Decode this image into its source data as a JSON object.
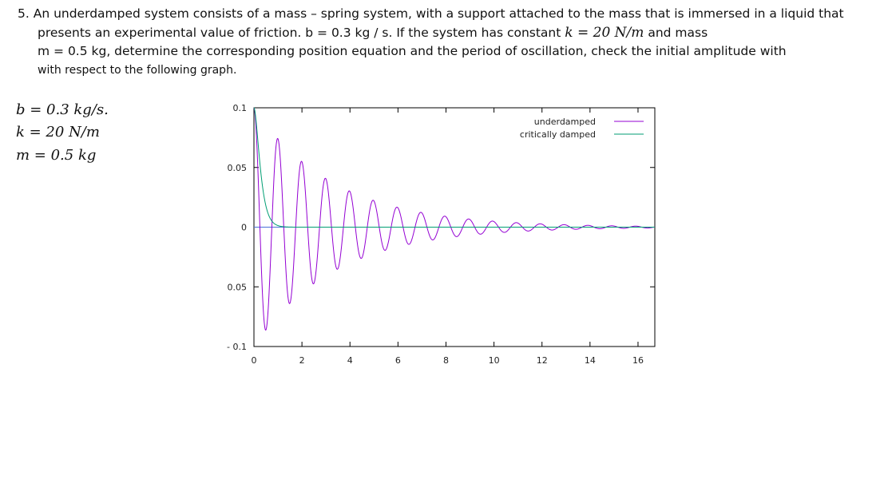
{
  "problem": {
    "line1": "5. An underdamped system consists of a mass – spring system, with a support attached to the mass that is immersed in a liquid that",
    "line2_pre": "presents an experimental value of friction. b = 0.3 kg / s. If the system has constant",
    "line2_math": "k = 20 N/m",
    "line2_post": "and mass",
    "line3": "m = 0.5 kg, determine the corresponding position equation and the period of oscillation, check the initial amplitude with",
    "line4": "with respect to the following graph."
  },
  "given": {
    "b": "b = 0.3 kg/s.",
    "k": "k = 20 N/m",
    "m": "m = 0.5 kg"
  },
  "chart_data": {
    "type": "line",
    "title": "",
    "xlabel": "",
    "ylabel": "",
    "xlim": [
      0,
      16.7
    ],
    "ylim": [
      -0.1,
      0.1
    ],
    "x_ticks": [
      "0",
      "2",
      "4",
      "6",
      "8",
      "10",
      "12",
      "14",
      "16"
    ],
    "y_ticks": [
      "0.1",
      "0.05",
      "0",
      "0.05",
      "- 0.1"
    ],
    "legend_position": "top-right",
    "grid": false,
    "series": [
      {
        "name": "underdamped",
        "color": "#9400d3",
        "model": {
          "amplitude": 0.1,
          "damping_rate": 0.3,
          "angular_frequency": 6.32
        },
        "x": [
          0,
          1,
          2,
          3,
          4,
          5,
          6,
          7,
          8,
          9,
          10,
          11,
          12,
          13,
          14,
          15,
          16
        ],
        "y_envelope": [
          0.1,
          0.074,
          0.055,
          0.041,
          0.03,
          0.022,
          0.017,
          0.012,
          0.009,
          0.007,
          0.005,
          0.004,
          0.003,
          0.002,
          0.0015,
          0.0011,
          0.0008
        ]
      },
      {
        "name": "critically damped",
        "color": "#009e73",
        "model": {
          "amplitude": 0.1,
          "decay_rate": 6.32
        },
        "x": [
          0,
          0.1,
          0.2,
          0.3,
          0.5,
          0.8,
          1.0,
          2.0,
          16
        ],
        "y": [
          0.1,
          0.087,
          0.064,
          0.043,
          0.017,
          0.003,
          0.0013,
          0.0,
          0.0
        ]
      }
    ]
  }
}
